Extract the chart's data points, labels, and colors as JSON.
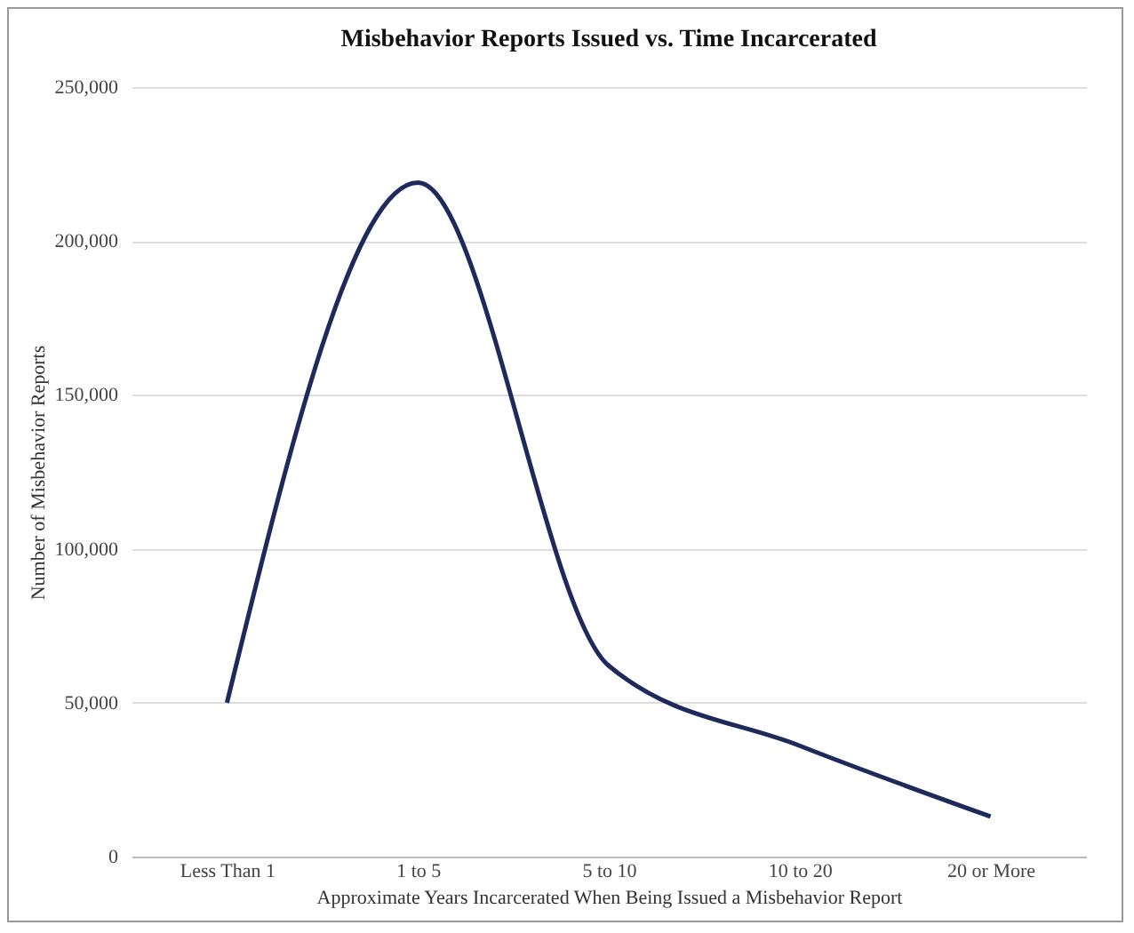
{
  "chart_data": {
    "type": "line",
    "title": "Misbehavior Reports Issued vs. Time Incarcerated",
    "xlabel": "Approximate Years Incarcerated When Being Issued a Misbehavior Report",
    "ylabel": "Number of Misbehavior Reports",
    "categories": [
      "Less Than 1",
      "1 to 5",
      "5 to 10",
      "10 to 20",
      "20 or More"
    ],
    "series": [
      {
        "color": "#1f2a5c",
        "values": [
          50000,
          219000,
          62000,
          36000,
          13000
        ]
      }
    ],
    "ylim": [
      0,
      250000
    ],
    "yticks": [
      0,
      {
        "value": 50000,
        "label": "50,000"
      },
      {
        "value": 100000,
        "label": "100,000"
      },
      {
        "value": 150000,
        "label": "150,000"
      },
      {
        "value": 200000,
        "label": "200,000"
      },
      {
        "value": 250000,
        "label": "250,000"
      }
    ],
    "grid": "y",
    "marker": "none",
    "line_style": "solid",
    "legend": false
  }
}
